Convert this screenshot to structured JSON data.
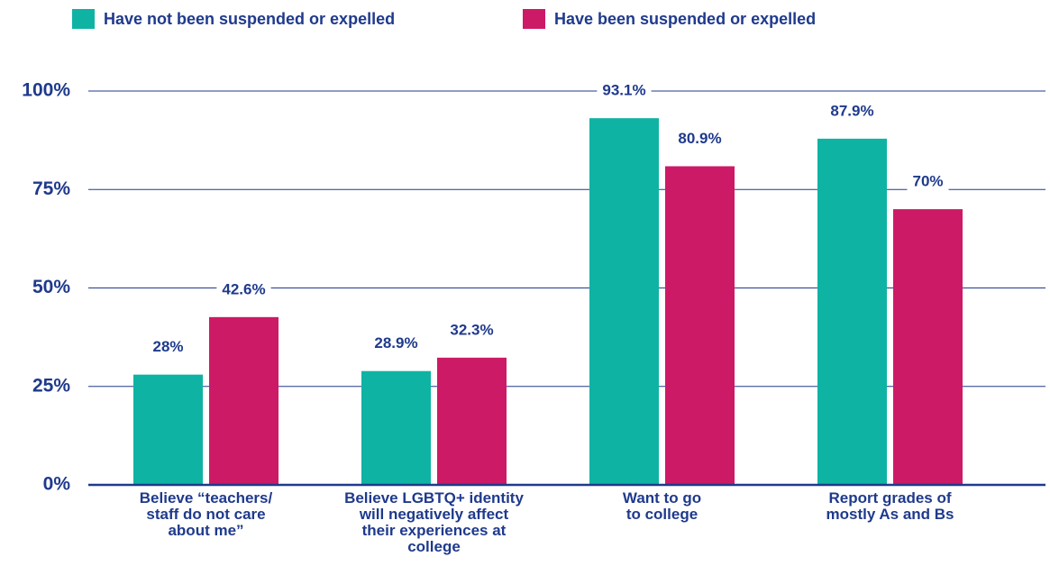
{
  "chart_data": {
    "type": "bar",
    "categories": [
      "Believe “teachers/\nstaff do not care\nabout me”",
      "Believe LGBTQ+ identity\nwill negatively affect\ntheir experiences at\ncollege",
      "Want to go\nto college",
      "Report grades of\nmostly As and Bs"
    ],
    "series": [
      {
        "name": "Have not been suspended or expelled",
        "color": "#0fb3a3",
        "values": [
          28,
          28.9,
          93.1,
          87.9
        ],
        "value_labels": [
          "28%",
          "28.9%",
          "93.1%",
          "87.9%"
        ]
      },
      {
        "name": "Have been suspended or expelled",
        "color": "#cc1a66",
        "values": [
          42.6,
          32.3,
          80.9,
          70
        ],
        "value_labels": [
          "42.6%",
          "32.3%",
          "80.9%",
          "70%"
        ]
      }
    ],
    "ylim": [
      0,
      100
    ],
    "yticks": [
      {
        "value": 0,
        "label": "0%"
      },
      {
        "value": 25,
        "label": "25%"
      },
      {
        "value": 50,
        "label": "50%"
      },
      {
        "value": 75,
        "label": "75%"
      },
      {
        "value": 100,
        "label": "100%"
      }
    ],
    "grid": true,
    "legend": "top"
  }
}
